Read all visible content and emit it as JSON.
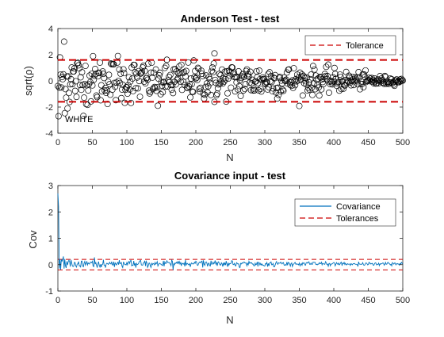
{
  "figure": {
    "background": "#ffffff"
  },
  "chart_data": [
    {
      "type": "scatter",
      "title": "Anderson Test - test",
      "xlabel": "N",
      "ylabel": "sqrt(ρ)",
      "xlim": [
        0,
        500
      ],
      "ylim": [
        -4,
        4
      ],
      "xticks": [
        "0",
        "50",
        "100",
        "150",
        "200",
        "250",
        "300",
        "350",
        "400",
        "450",
        "500"
      ],
      "yticks": [
        "-4",
        "-2",
        "0",
        "2",
        "4"
      ],
      "grid": false,
      "legend": {
        "position": "top-right",
        "entries": [
          "Tolerance"
        ]
      },
      "annotation": "WHITE",
      "marker_color": "#000000",
      "tolerance_color": "#cc0000",
      "tolerance": [
        1.6,
        -1.6
      ],
      "series_envelope": [
        {
          "x": 0,
          "y": 2.3
        },
        {
          "x": 50,
          "y": 1.7
        },
        {
          "x": 100,
          "y": 1.5
        },
        {
          "x": 200,
          "y": 1.3
        },
        {
          "x": 300,
          "y": 1.2
        },
        {
          "x": 400,
          "y": 0.8
        },
        {
          "x": 450,
          "y": 0.5
        },
        {
          "x": 500,
          "y": 0.15
        }
      ],
      "notable_points": [
        {
          "x": 1,
          "y": -2.7
        },
        {
          "x": 3,
          "y": 1.8
        },
        {
          "x": 9,
          "y": 3.0
        },
        {
          "x": 14,
          "y": -2.1
        },
        {
          "x": 87,
          "y": 1.9
        },
        {
          "x": 227,
          "y": 2.1
        },
        {
          "x": 145,
          "y": -1.9
        },
        {
          "x": 227,
          "y": -1.6
        }
      ]
    },
    {
      "type": "line",
      "title": "Covariance input - test",
      "xlabel": "N",
      "ylabel": "Cov",
      "xlim": [
        0,
        500
      ],
      "ylim": [
        -1,
        3
      ],
      "xticks": [
        "0",
        "50",
        "100",
        "150",
        "200",
        "250",
        "300",
        "350",
        "400",
        "450",
        "500"
      ],
      "yticks": [
        "-1",
        "0",
        "1",
        "2",
        "3"
      ],
      "grid": false,
      "legend": {
        "position": "top-right",
        "entries": [
          "Covariance",
          "Tolerances"
        ]
      },
      "series": [
        {
          "name": "Covariance",
          "color": "#0072bd",
          "envelope": [
            {
              "x": 0,
              "y": 2.7
            },
            {
              "x": 1,
              "y": 2.2
            },
            {
              "x": 3,
              "y": 0.2
            },
            {
              "x": 50,
              "y": 0.12
            },
            {
              "x": 250,
              "y": 0.1
            },
            {
              "x": 400,
              "y": 0.06
            },
            {
              "x": 500,
              "y": 0.04
            }
          ]
        },
        {
          "name": "Tolerances",
          "color": "#cc0000",
          "values": [
            0.2,
            -0.2
          ]
        }
      ]
    }
  ]
}
